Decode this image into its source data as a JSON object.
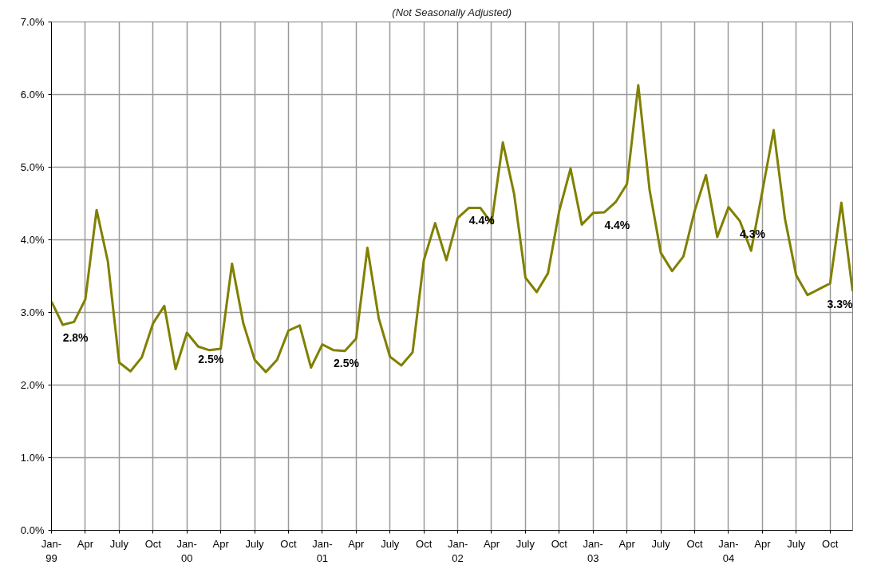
{
  "chart_data": {
    "type": "line",
    "subtitle": "(Not Seasonally Adjusted)",
    "x": [
      "1999-01",
      "1999-02",
      "1999-03",
      "1999-04",
      "1999-05",
      "1999-06",
      "1999-07",
      "1999-08",
      "1999-09",
      "1999-10",
      "1999-11",
      "1999-12",
      "2000-01",
      "2000-02",
      "2000-03",
      "2000-04",
      "2000-05",
      "2000-06",
      "2000-07",
      "2000-08",
      "2000-09",
      "2000-10",
      "2000-11",
      "2000-12",
      "2001-01",
      "2001-02",
      "2001-03",
      "2001-04",
      "2001-05",
      "2001-06",
      "2001-07",
      "2001-08",
      "2001-09",
      "2001-10",
      "2001-11",
      "2001-12",
      "2002-01",
      "2002-02",
      "2002-03",
      "2002-04",
      "2002-05",
      "2002-06",
      "2002-07",
      "2002-08",
      "2002-09",
      "2002-10",
      "2002-11",
      "2002-12",
      "2003-01",
      "2003-02",
      "2003-03",
      "2003-04",
      "2003-05",
      "2003-06",
      "2003-07",
      "2003-08",
      "2003-09",
      "2003-10",
      "2003-11",
      "2003-12",
      "2004-01",
      "2004-02",
      "2004-03",
      "2004-04",
      "2004-05",
      "2004-06",
      "2004-07",
      "2004-08",
      "2004-09",
      "2004-10",
      "2004-11",
      "2004-12"
    ],
    "series": [
      {
        "color": "#808000",
        "values": [
          3.15,
          2.83,
          2.87,
          3.18,
          4.41,
          3.7,
          2.31,
          2.19,
          2.38,
          2.85,
          3.09,
          2.22,
          2.72,
          2.53,
          2.48,
          2.5,
          3.67,
          2.85,
          2.35,
          2.18,
          2.35,
          2.75,
          2.82,
          2.24,
          2.56,
          2.48,
          2.47,
          2.64,
          3.89,
          2.92,
          2.39,
          2.27,
          2.45,
          3.72,
          4.23,
          3.72,
          4.3,
          4.44,
          4.44,
          4.23,
          5.34,
          4.63,
          3.48,
          3.28,
          3.54,
          4.4,
          4.98,
          4.21,
          4.37,
          4.38,
          4.52,
          4.77,
          6.13,
          4.69,
          3.82,
          3.57,
          3.77,
          4.4,
          4.89,
          4.04,
          4.45,
          4.26,
          3.85,
          4.67,
          5.51,
          4.29,
          3.51,
          3.24,
          3.32,
          3.4,
          4.51,
          3.29
        ],
        "value_labels": [
          null,
          "2.8%",
          null,
          null,
          null,
          null,
          null,
          null,
          null,
          null,
          null,
          null,
          null,
          "2.5%",
          null,
          null,
          null,
          null,
          null,
          null,
          null,
          null,
          null,
          null,
          null,
          "2.5%",
          null,
          null,
          null,
          null,
          null,
          null,
          null,
          null,
          null,
          null,
          null,
          "4.4%",
          null,
          null,
          null,
          null,
          null,
          null,
          null,
          null,
          null,
          null,
          null,
          "4.4%",
          null,
          null,
          null,
          null,
          null,
          null,
          null,
          null,
          null,
          null,
          null,
          "4.3%",
          null,
          null,
          null,
          null,
          null,
          null,
          null,
          null,
          null,
          "3.3%"
        ]
      }
    ],
    "line_style": "solid",
    "grid": true,
    "xlim": [
      "1999-01",
      "2004-12"
    ],
    "xticks": [
      {
        "value": "1999-01",
        "label": "Jan-\n99"
      },
      {
        "value": "1999-04",
        "label": "Apr"
      },
      {
        "value": "1999-07",
        "label": "July"
      },
      {
        "value": "1999-10",
        "label": "Oct"
      },
      {
        "value": "2000-01",
        "label": "Jan-\n00"
      },
      {
        "value": "2000-04",
        "label": "Apr"
      },
      {
        "value": "2000-07",
        "label": "July"
      },
      {
        "value": "2000-10",
        "label": "Oct"
      },
      {
        "value": "2001-01",
        "label": "Jan-\n01"
      },
      {
        "value": "2001-04",
        "label": "Apr"
      },
      {
        "value": "2001-07",
        "label": "July"
      },
      {
        "value": "2001-10",
        "label": "Oct"
      },
      {
        "value": "2002-01",
        "label": "Jan-\n02"
      },
      {
        "value": "2002-04",
        "label": "Apr"
      },
      {
        "value": "2002-07",
        "label": "July"
      },
      {
        "value": "2002-10",
        "label": "Oct"
      },
      {
        "value": "2003-01",
        "label": "Jan-\n03"
      },
      {
        "value": "2003-04",
        "label": "Apr"
      },
      {
        "value": "2003-07",
        "label": "July"
      },
      {
        "value": "2003-10",
        "label": "Oct"
      },
      {
        "value": "2004-01",
        "label": "Jan-\n04"
      },
      {
        "value": "2004-04",
        "label": "Apr"
      },
      {
        "value": "2004-07",
        "label": "July"
      },
      {
        "value": "2004-10",
        "label": "Oct"
      }
    ],
    "ylim": [
      0,
      7
    ],
    "yticks": [
      {
        "value": 0,
        "label": "0.0%"
      },
      {
        "value": 1,
        "label": "1.0%"
      },
      {
        "value": 2,
        "label": "2.0%"
      },
      {
        "value": 3,
        "label": "3.0%"
      },
      {
        "value": 4,
        "label": "4.0%"
      },
      {
        "value": 5,
        "label": "5.0%"
      },
      {
        "value": 6,
        "label": "6.0%"
      },
      {
        "value": 7,
        "label": "7.0%"
      }
    ]
  }
}
